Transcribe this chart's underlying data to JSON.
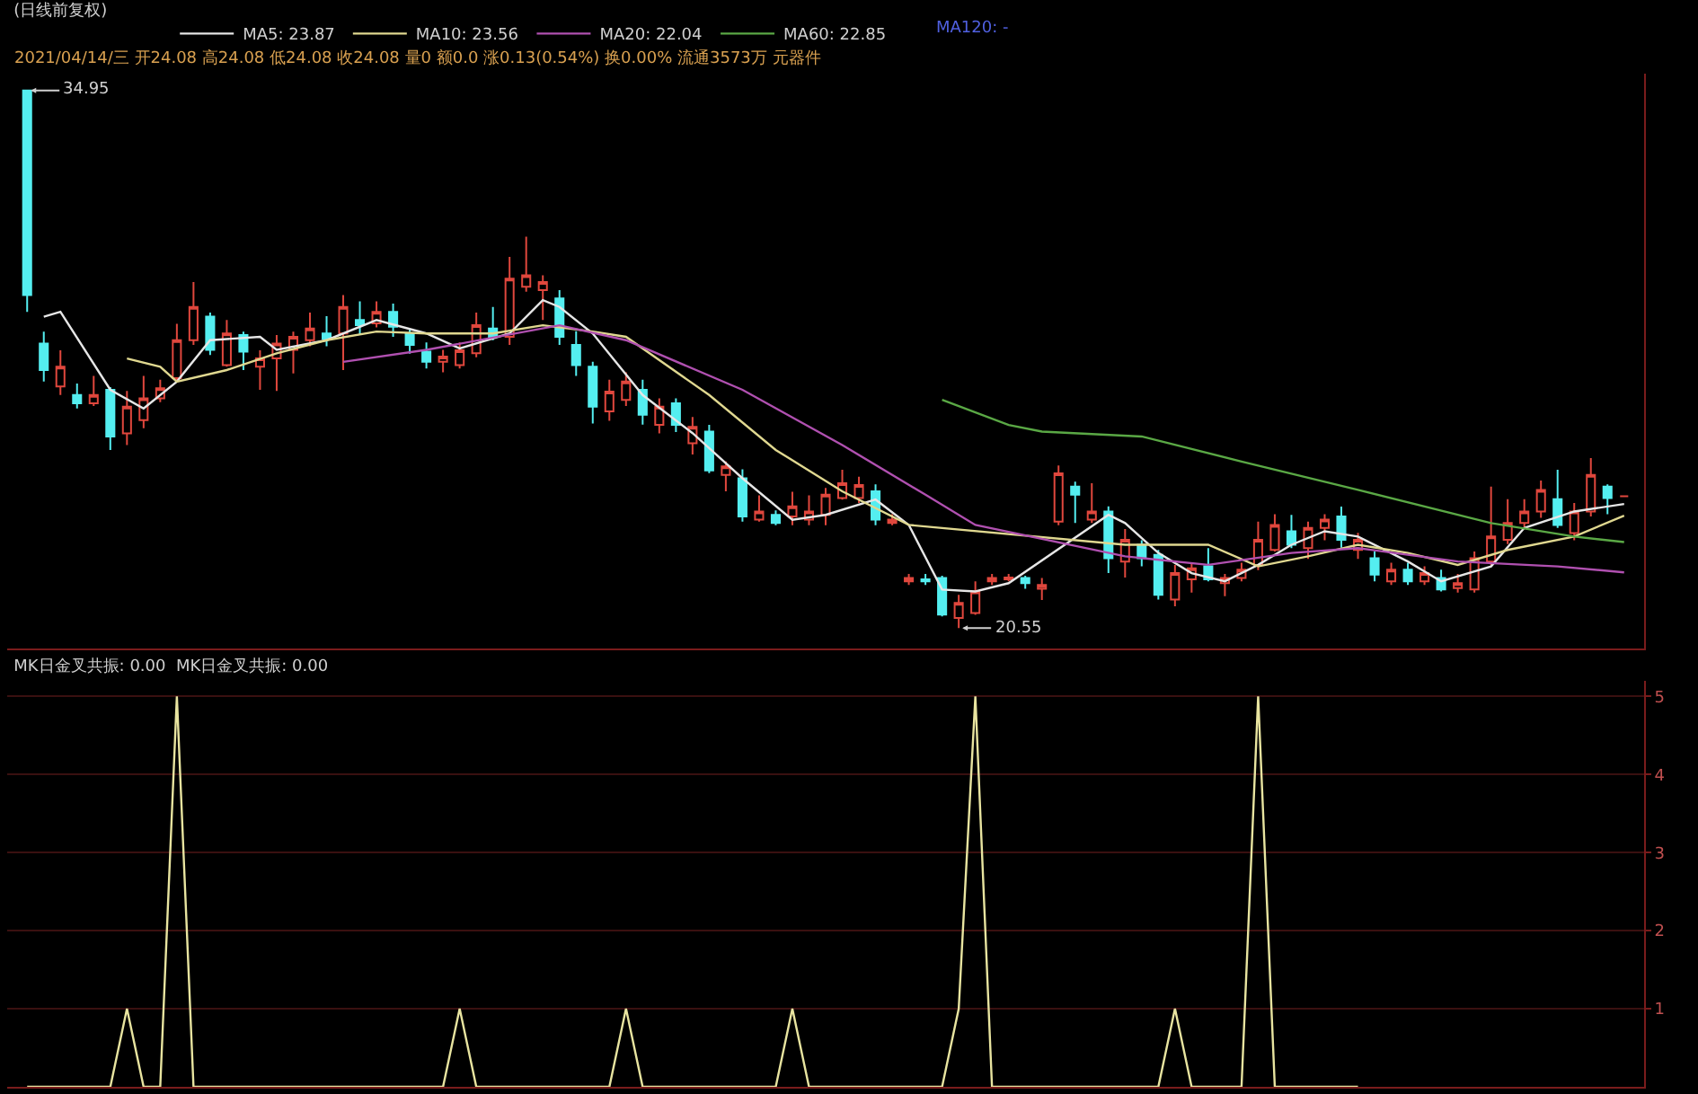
{
  "chart_data": [
    {
      "type": "candlestick",
      "title": "(日线前复权)",
      "subtitle": "2021/04/14/三 开24.08 高24.08 低24.08 收24.08 量0 额0.0 涨0.13(0.54%) 换0.00% 流通3573万 元器件",
      "categories": [
        null,
        null,
        null,
        null,
        null,
        null,
        null,
        null,
        null,
        null,
        null,
        null,
        null,
        null,
        null,
        null,
        null,
        null,
        null,
        null,
        null,
        null,
        null,
        null,
        null,
        null,
        null,
        null,
        null,
        null,
        null,
        null,
        null,
        null,
        null,
        null,
        null,
        null,
        null,
        null,
        null,
        null,
        null,
        null,
        null,
        null,
        null,
        null,
        null,
        null,
        null,
        null,
        null,
        null,
        null,
        null,
        null,
        null,
        null,
        null,
        null,
        null,
        null,
        null,
        null,
        null,
        null,
        null,
        null,
        null,
        null,
        null,
        null,
        null,
        null,
        null,
        null,
        null,
        null,
        null,
        null,
        null,
        null,
        null,
        null,
        null,
        null,
        null,
        null,
        null,
        null,
        null,
        null,
        null,
        null,
        null,
        null
      ],
      "ohlc": [
        [
          34.95,
          34.95,
          29.02,
          29.47
        ],
        [
          28.17,
          28.49,
          27.15,
          27.46
        ],
        [
          27.02,
          27.99,
          26.79,
          27.55
        ],
        [
          26.79,
          27.1,
          26.43,
          26.57
        ],
        [
          26.57,
          27.3,
          26.5,
          26.79
        ],
        [
          26.93,
          27.0,
          25.32,
          25.68
        ],
        [
          25.76,
          26.9,
          25.45,
          26.48
        ],
        [
          26.12,
          27.3,
          25.9,
          26.7
        ],
        [
          26.7,
          27.2,
          26.6,
          26.97
        ],
        [
          27.24,
          28.7,
          27.15,
          28.26
        ],
        [
          28.26,
          29.82,
          28.13,
          29.15
        ],
        [
          28.89,
          29.0,
          27.86,
          28.0
        ],
        [
          27.59,
          28.8,
          27.55,
          28.44
        ],
        [
          28.4,
          28.49,
          27.46,
          27.95
        ],
        [
          27.55,
          27.99,
          26.93,
          27.77
        ],
        [
          27.77,
          28.4,
          26.9,
          28.17
        ],
        [
          28.0,
          28.49,
          27.37,
          28.35
        ],
        [
          28.26,
          29.0,
          28.1,
          28.57
        ],
        [
          28.44,
          28.9,
          28.1,
          28.3
        ],
        [
          28.44,
          29.47,
          27.46,
          29.15
        ],
        [
          28.8,
          29.3,
          28.4,
          28.66
        ],
        [
          28.71,
          29.3,
          28.6,
          29.02
        ],
        [
          29.02,
          29.24,
          28.35,
          28.62
        ],
        [
          28.44,
          28.57,
          27.9,
          28.13
        ],
        [
          27.95,
          28.2,
          27.5,
          27.68
        ],
        [
          27.68,
          28.0,
          27.4,
          27.82
        ],
        [
          27.59,
          28.2,
          27.5,
          27.99
        ],
        [
          27.91,
          29.0,
          27.8,
          28.66
        ],
        [
          28.57,
          29.15,
          28.26,
          28.35
        ],
        [
          28.35,
          30.49,
          28.13,
          29.91
        ],
        [
          29.69,
          31.03,
          29.56,
          30.0
        ],
        [
          29.6,
          30.0,
          28.8,
          29.82
        ],
        [
          29.38,
          29.6,
          28.13,
          28.35
        ],
        [
          28.13,
          28.5,
          27.3,
          27.59
        ],
        [
          27.55,
          27.68,
          26.03,
          26.48
        ],
        [
          26.35,
          27.2,
          26.1,
          26.88
        ],
        [
          26.66,
          27.4,
          26.5,
          27.15
        ],
        [
          26.93,
          27.2,
          26.0,
          26.26
        ],
        [
          25.99,
          26.7,
          25.76,
          26.48
        ],
        [
          26.57,
          26.7,
          25.8,
          25.99
        ],
        [
          25.5,
          26.2,
          25.2,
          25.94
        ],
        [
          25.81,
          25.99,
          24.7,
          24.77
        ],
        [
          24.65,
          25.01,
          24.21,
          24.88
        ],
        [
          24.56,
          24.8,
          23.4,
          23.54
        ],
        [
          23.45,
          24.1,
          23.4,
          23.67
        ],
        [
          23.58,
          23.7,
          23.3,
          23.36
        ],
        [
          23.54,
          24.2,
          23.3,
          23.81
        ],
        [
          23.45,
          24.1,
          23.3,
          23.67
        ],
        [
          23.58,
          24.3,
          23.3,
          24.12
        ],
        [
          24.03,
          24.79,
          23.99,
          24.43
        ],
        [
          24.03,
          24.6,
          23.9,
          24.38
        ],
        [
          24.21,
          24.4,
          23.3,
          23.45
        ],
        [
          23.36,
          23.6,
          23.3,
          23.45
        ],
        [
          21.8,
          22.0,
          21.7,
          21.89
        ],
        [
          21.85,
          22.0,
          21.7,
          21.8
        ],
        [
          21.89,
          21.95,
          20.86,
          20.91
        ],
        [
          20.82,
          21.44,
          20.55,
          21.22
        ],
        [
          20.95,
          21.8,
          20.9,
          21.53
        ],
        [
          21.8,
          22.0,
          21.7,
          21.89
        ],
        [
          21.85,
          22.0,
          21.8,
          21.9
        ],
        [
          21.89,
          21.95,
          21.6,
          21.75
        ],
        [
          21.6,
          21.89,
          21.3,
          21.7
        ],
        [
          23.4,
          24.9,
          23.3,
          24.69
        ],
        [
          24.34,
          24.47,
          23.36,
          24.12
        ],
        [
          23.45,
          24.43,
          23.36,
          23.67
        ],
        [
          23.67,
          23.81,
          22.02,
          22.42
        ],
        [
          22.33,
          23.2,
          21.9,
          22.91
        ],
        [
          22.78,
          22.9,
          22.2,
          22.42
        ],
        [
          22.51,
          22.64,
          21.31,
          21.44
        ],
        [
          21.31,
          22.24,
          21.13,
          22.02
        ],
        [
          21.85,
          22.3,
          21.5,
          22.15
        ],
        [
          22.2,
          22.69,
          21.8,
          21.85
        ],
        [
          21.75,
          22.0,
          21.4,
          21.89
        ],
        [
          21.89,
          22.3,
          21.8,
          22.11
        ],
        [
          22.24,
          23.4,
          22.1,
          22.91
        ],
        [
          22.64,
          23.6,
          22.6,
          23.31
        ],
        [
          23.14,
          23.58,
          22.69,
          22.78
        ],
        [
          22.69,
          23.4,
          22.4,
          23.23
        ],
        [
          23.23,
          23.6,
          22.9,
          23.45
        ],
        [
          23.54,
          23.8,
          22.7,
          22.91
        ],
        [
          22.64,
          23.1,
          22.4,
          22.91
        ],
        [
          22.42,
          22.6,
          21.8,
          21.98
        ],
        [
          21.8,
          22.3,
          21.7,
          22.11
        ],
        [
          22.11,
          22.3,
          21.7,
          21.8
        ],
        [
          21.8,
          22.2,
          21.7,
          22.02
        ],
        [
          21.89,
          22.11,
          21.53,
          21.58
        ],
        [
          21.62,
          22.0,
          21.5,
          21.75
        ],
        [
          21.58,
          22.6,
          21.5,
          22.42
        ],
        [
          22.33,
          24.34,
          22.24,
          23.0
        ],
        [
          22.91,
          24.0,
          22.8,
          23.36
        ],
        [
          23.36,
          24.0,
          23.2,
          23.67
        ],
        [
          23.67,
          24.5,
          23.5,
          24.25
        ],
        [
          24.0,
          24.79,
          23.23,
          23.31
        ],
        [
          23.09,
          23.9,
          22.9,
          23.67
        ],
        [
          23.67,
          25.1,
          23.54,
          24.65
        ],
        [
          24.34,
          24.4,
          23.6,
          24.03
        ],
        [
          24.08,
          24.08,
          24.08,
          24.08
        ]
      ],
      "series": [
        {
          "name": "MA5: 23.87",
          "type": "line",
          "color": "#e6e6e6",
          "values": [
            null,
            28.89,
            29.02,
            null,
            null,
            26.93,
            null,
            26.43,
            null,
            27.15,
            null,
            28.26,
            null,
            null,
            28.35,
            28.0,
            null,
            null,
            28.26,
            null,
            null,
            28.8,
            null,
            null,
            28.44,
            null,
            28.04,
            null,
            null,
            28.44,
            null,
            29.33,
            29.15,
            null,
            28.44,
            null,
            null,
            26.79,
            null,
            null,
            25.77,
            null,
            null,
            24.56,
            null,
            null,
            23.45,
            null,
            23.58,
            null,
            null,
            23.99,
            null,
            23.31,
            null,
            21.58,
            null,
            21.53,
            null,
            21.75,
            null,
            null,
            null,
            null,
            null,
            23.58,
            23.36,
            null,
            22.56,
            null,
            22.02,
            null,
            21.8,
            null,
            22.24,
            null,
            22.78,
            null,
            23.14,
            null,
            23.0,
            null,
            null,
            22.33,
            null,
            21.8,
            null,
            null,
            22.2,
            null,
            23.23,
            null,
            null,
            23.67,
            null,
            null,
            23.87
          ]
        },
        {
          "name": "MA10: 23.56",
          "type": "line",
          "color": "#e0d890",
          "values": [
            null,
            null,
            null,
            null,
            null,
            null,
            27.77,
            null,
            27.55,
            27.15,
            null,
            null,
            27.46,
            null,
            null,
            27.91,
            null,
            null,
            28.26,
            null,
            null,
            28.49,
            null,
            null,
            28.44,
            null,
            null,
            null,
            28.44,
            null,
            null,
            28.66,
            null,
            null,
            28.49,
            null,
            28.35,
            null,
            null,
            null,
            null,
            26.79,
            null,
            null,
            null,
            25.32,
            null,
            null,
            null,
            24.21,
            null,
            null,
            null,
            23.31,
            null,
            null,
            null,
            null,
            null,
            null,
            null,
            null,
            null,
            null,
            null,
            null,
            22.78,
            null,
            null,
            null,
            null,
            22.78,
            null,
            null,
            22.2,
            null,
            null,
            22.47,
            null,
            null,
            22.78,
            null,
            null,
            22.56,
            null,
            null,
            22.24,
            null,
            null,
            22.64,
            null,
            null,
            null,
            23.0,
            null,
            null,
            23.56
          ]
        },
        {
          "name": "MA20: 22.04",
          "type": "line",
          "color": "#b050b0",
          "values": [
            null,
            null,
            null,
            null,
            null,
            null,
            null,
            null,
            null,
            null,
            null,
            null,
            null,
            null,
            null,
            null,
            null,
            null,
            null,
            27.68,
            null,
            null,
            null,
            null,
            28.0,
            null,
            null,
            null,
            null,
            null,
            null,
            null,
            28.66,
            null,
            null,
            null,
            28.26,
            null,
            null,
            null,
            null,
            null,
            null,
            26.93,
            null,
            null,
            null,
            null,
            null,
            25.45,
            null,
            null,
            null,
            null,
            24.12,
            null,
            null,
            23.31,
            null,
            null,
            null,
            null,
            null,
            null,
            null,
            null,
            22.47,
            null,
            null,
            null,
            null,
            22.24,
            null,
            null,
            null,
            null,
            22.56,
            null,
            null,
            null,
            22.69,
            null,
            null,
            null,
            null,
            null,
            22.33,
            null,
            null,
            null,
            null,
            null,
            22.2,
            null,
            null,
            null,
            22.04
          ]
        },
        {
          "name": "MA60: 22.85",
          "type": "line",
          "color": "#5aa845",
          "values": [
            null,
            null,
            null,
            null,
            null,
            null,
            null,
            null,
            null,
            null,
            null,
            null,
            null,
            null,
            null,
            null,
            null,
            null,
            null,
            null,
            null,
            null,
            null,
            null,
            null,
            null,
            null,
            null,
            null,
            null,
            null,
            null,
            null,
            null,
            null,
            null,
            null,
            null,
            null,
            null,
            null,
            null,
            null,
            null,
            null,
            null,
            null,
            null,
            null,
            null,
            null,
            null,
            null,
            null,
            null,
            26.66,
            null,
            null,
            null,
            25.99,
            null,
            25.81,
            null,
            null,
            null,
            null,
            null,
            25.68,
            null,
            null,
            null,
            null,
            null,
            25.01,
            null,
            null,
            null,
            null,
            null,
            null,
            24.25,
            null,
            null,
            null,
            null,
            null,
            null,
            null,
            23.36,
            null,
            null,
            null,
            null,
            23.0,
            null,
            null,
            22.85
          ]
        }
      ],
      "ylim": [
        20.0,
        35.4
      ],
      "legend": "top left",
      "tick_labels": false,
      "annotations": [
        "34.95",
        "20.55",
        "MA120: -"
      ]
    },
    {
      "type": "line",
      "title": "MK日金叉共振: 0.00  MK日金叉共振: 0.00",
      "categories": [
        null,
        null,
        null,
        null,
        null,
        null,
        null,
        null,
        null,
        null,
        null,
        null,
        null,
        null,
        null,
        null,
        null,
        null,
        null,
        null,
        null,
        null,
        null,
        null,
        null,
        null,
        null,
        null,
        null,
        null,
        null,
        null,
        null,
        null,
        null,
        null,
        null,
        null,
        null,
        null,
        null,
        null,
        null,
        null,
        null,
        null,
        null,
        null,
        null,
        null,
        null,
        null,
        null,
        null,
        null,
        null,
        null,
        null,
        null,
        null,
        null,
        null,
        null,
        null,
        null,
        null,
        null,
        null,
        null,
        null,
        null,
        null,
        null,
        null,
        null,
        null,
        null,
        null,
        null,
        null,
        null,
        null,
        null,
        null,
        null,
        null,
        null,
        null,
        null,
        null,
        null,
        null,
        null,
        null,
        null,
        null,
        null
      ],
      "series": [
        {
          "color": "#e8e4a0",
          "values": [
            0,
            0,
            0,
            0,
            0,
            0,
            1,
            0,
            0,
            5,
            0,
            0,
            0,
            0,
            0,
            0,
            0,
            0,
            0,
            0,
            0,
            0,
            0,
            0,
            0,
            0,
            1,
            0,
            0,
            0,
            0,
            0,
            0,
            0,
            0,
            0,
            1,
            0,
            0,
            0,
            0,
            0,
            0,
            0,
            0,
            0,
            1,
            0,
            0,
            0,
            0,
            0,
            0,
            0,
            0,
            0,
            1,
            5,
            0,
            0,
            0,
            0,
            0,
            0,
            0,
            0,
            0,
            0,
            0,
            1,
            0,
            0,
            0,
            0,
            5,
            0,
            0,
            0,
            0,
            0,
            0,
            null,
            null,
            null,
            null,
            null,
            null,
            null,
            null,
            null,
            null,
            null,
            null,
            null,
            null,
            null,
            null
          ]
        }
      ],
      "ylim": [
        0,
        5.2
      ],
      "yticks": [
        1,
        2,
        3,
        4,
        5
      ],
      "grid": "y",
      "tick_labels": "y"
    }
  ]
}
